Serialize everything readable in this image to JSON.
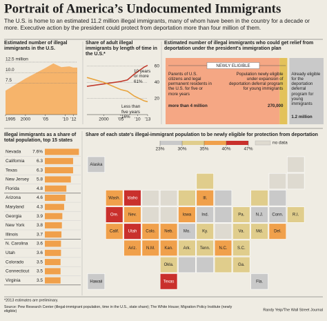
{
  "header": {
    "title": "Portrait of America’s Undocumented Immigrants",
    "subtitle": "The U.S. is home to an estimated 11.2 million illegal immigrants, many of whom have been in the country for a decade or more. Executive action by the president could protect from deportation more than four million of them."
  },
  "chart_data": [
    {
      "type": "area",
      "title": "Estimated number of illegal immigrants in the U.S.",
      "x": [
        1995,
        2000,
        2005,
        2007,
        2009,
        2011,
        2012,
        2013
      ],
      "values": [
        5.7,
        8.6,
        11.1,
        12.2,
        11.3,
        11.5,
        11.2,
        11.2
      ],
      "color": "#f6b46b",
      "xlim": [
        1995,
        2013
      ],
      "ylim": [
        0,
        12.5
      ],
      "xticks": [
        1995,
        2000,
        {
          "value": 2005,
          "label": "’05"
        },
        {
          "value": 2010,
          "label": "’10"
        },
        {
          "value": 2012,
          "label": "’12"
        }
      ],
      "yticks": [
        {
          "value": 12.5,
          "label": "12.5 million"
        },
        {
          "value": 10,
          "label": "10.0"
        },
        7.5
      ],
      "grid": true
    },
    {
      "type": "line",
      "title": "Share of adult illegal immigrants by length of time in the U.S.*",
      "x": [
        1995,
        2000,
        2005,
        2007,
        2009,
        2011,
        2012,
        2013
      ],
      "series": [
        {
          "name": "10 years or more",
          "color": "#c0392b",
          "values": [
            35,
            38,
            41,
            43,
            50,
            56,
            59,
            61
          ],
          "value_labels": [
            null,
            null,
            null,
            null,
            null,
            null,
            null,
            "61%"
          ]
        },
        {
          "name": "Less than five years",
          "color": "#e8a33c",
          "values": [
            46,
            40,
            31,
            29,
            23,
            19,
            17,
            16
          ],
          "value_labels": [
            null,
            null,
            null,
            null,
            null,
            null,
            null,
            "16%"
          ]
        }
      ],
      "xlim": [
        1995,
        2013
      ],
      "ylim": [
        0,
        65
      ],
      "xticks": [
        2000,
        {
          "value": 2005,
          "label": "’05"
        },
        {
          "value": 2010,
          "label": "’10"
        },
        {
          "value": 2013,
          "label": "’13"
        }
      ],
      "yticks": [
        20,
        40,
        60
      ],
      "grid": true
    },
    {
      "type": "stacked-bar",
      "title": "Estimated number of illegal immigrants who could get relief from deportation under the president's immigration plan",
      "annotation": "NEWLY ELIGIBLE",
      "categories": [
        "Parents of U.S. citizens and legal permanent residents in the U.S. for five or more years",
        "Population newly eligible under expansion of deportation deferral program for young immigrants",
        "Already eligible for the deportation deferral program for young immigrants"
      ],
      "values": [
        4000000,
        270000,
        1200000
      ],
      "value_labels": [
        "more than 4 million",
        "270,000",
        "1.2 million"
      ],
      "colors": [
        "#f5a784",
        "#e3c25a",
        "#c9c9c9"
      ]
    },
    {
      "type": "hbar",
      "title": "Illegal immigrants as a share of total population, top 15 states",
      "categories": [
        "Nevada",
        "California",
        "Texas",
        "New Jersey",
        "Florida",
        "Arizona",
        "Maryland",
        "Georgia",
        "New York",
        "Illinois",
        "N. Carolina",
        "Utah",
        "Colorado",
        "Connecticut",
        "Virginia"
      ],
      "values": [
        7.6,
        6.3,
        6.3,
        5.8,
        4.8,
        4.6,
        4.3,
        3.9,
        3.8,
        3.7,
        3.6,
        3.6,
        3.5,
        3.5,
        3.5
      ],
      "value_labels": [
        "7.6%",
        "6.3",
        "6.3",
        "5.8",
        "4.8",
        "4.6",
        "4.3",
        "3.9",
        "3.8",
        "3.7",
        "3.6",
        "3.6",
        "3.5",
        "3.5",
        "3.5"
      ],
      "color": "#f0a04b",
      "xlim": [
        0,
        8
      ]
    },
    {
      "type": "map",
      "title": "Share of each state's illegal-immigrant population to be newly eligible for protection from deportation",
      "legend_ticks": [
        {
          "value": 23,
          "label": "23%"
        },
        {
          "value": 30,
          "label": "30%"
        },
        {
          "value": 35,
          "label": "35%"
        },
        {
          "value": 40,
          "label": "40%"
        },
        {
          "value": 47,
          "label": "47%"
        }
      ],
      "bin_colors": [
        "#c9c9c9",
        "#e0cd8c",
        "#f0a04b",
        "#c9302c"
      ],
      "no_data_label": "no data",
      "no_data_color": "#dedad0",
      "states": [
        {
          "name": "Alaska",
          "color": "#c9c9c9"
        },
        {
          "name": null,
          "color": "#dedad0"
        },
        {
          "name": null,
          "color": "#e0cd8c"
        },
        {
          "name": null,
          "color": "#dedad0"
        },
        {
          "name": null,
          "color": "#dedad0"
        },
        {
          "name": "Wash.",
          "color": "#f0a04b"
        },
        {
          "name": "Idaho",
          "color": "#c9302c"
        },
        {
          "name": null,
          "color": "#dedad0"
        },
        {
          "name": null,
          "color": "#dedad0"
        },
        {
          "name": null,
          "color": "#e0cd8c"
        },
        {
          "name": "Ill.",
          "color": "#f0a04b"
        },
        {
          "name": null,
          "color": "#c9c9c9"
        },
        {
          "name": null,
          "color": "#e0cd8c"
        },
        {
          "name": null,
          "color": "#c9c9c9"
        },
        {
          "name": "Ore.",
          "color": "#c9302c"
        },
        {
          "name": "Nev.",
          "color": "#f0a04b"
        },
        {
          "name": null,
          "color": "#dedad0"
        },
        {
          "name": null,
          "color": "#dedad0"
        },
        {
          "name": "Iowa",
          "color": "#f0a04b"
        },
        {
          "name": "Ind.",
          "color": "#c9c9c9"
        },
        {
          "name": null,
          "color": "#c9c9c9"
        },
        {
          "name": "Pa.",
          "color": "#e0cd8c"
        },
        {
          "name": "N.J.",
          "color": "#c9c9c9"
        },
        {
          "name": "Conn.",
          "color": "#c9c9c9"
        },
        {
          "name": "R.I.",
          "color": "#e0cd8c"
        },
        {
          "name": "Calif.",
          "color": "#f0a04b"
        },
        {
          "name": "Utah",
          "color": "#c9302c"
        },
        {
          "name": "Colo.",
          "color": "#f0a04b"
        },
        {
          "name": "Neb.",
          "color": "#f0a04b"
        },
        {
          "name": "Mo.",
          "color": "#c9c9c9"
        },
        {
          "name": "Ky.",
          "color": "#e0cd8c"
        },
        {
          "name": null,
          "color": "#dedad0"
        },
        {
          "name": "Va.",
          "color": "#e0cd8c"
        },
        {
          "name": "Md.",
          "color": "#e0cd8c"
        },
        {
          "name": "Del.",
          "color": "#f0a04b"
        },
        {
          "name": "Ariz.",
          "color": "#f0a04b"
        },
        {
          "name": "N.M.",
          "color": "#f0a04b"
        },
        {
          "name": "Kan.",
          "color": "#f0a04b"
        },
        {
          "name": "Ark.",
          "color": "#e0cd8c"
        },
        {
          "name": "Tenn.",
          "color": "#e0cd8c"
        },
        {
          "name": "N.C.",
          "color": "#f0a04b"
        },
        {
          "name": "S.C.",
          "color": "#e0cd8c"
        },
        {
          "name": "Okla.",
          "color": "#e0cd8c"
        },
        {
          "name": null,
          "color": "#c9c9c9"
        },
        {
          "name": null,
          "color": "#c9c9c9"
        },
        {
          "name": null,
          "color": "#e0cd8c"
        },
        {
          "name": "Ga.",
          "color": "#e0cd8c"
        },
        {
          "name": "Hawaii",
          "color": "#c9c9c9"
        },
        {
          "name": "Texas",
          "color": "#c9302c"
        },
        {
          "name": "Fla.",
          "color": "#c9c9c9"
        }
      ]
    }
  ],
  "footer": {
    "note": "*2013 estimates are preliminary.",
    "source": "Source: Pew Research Center (illegal-immigrant population, time in the U.S., state share); The White House; Migration Policy Institute (newly eligible)",
    "credit": "Randy Yeip/The Wall Street Journal"
  }
}
